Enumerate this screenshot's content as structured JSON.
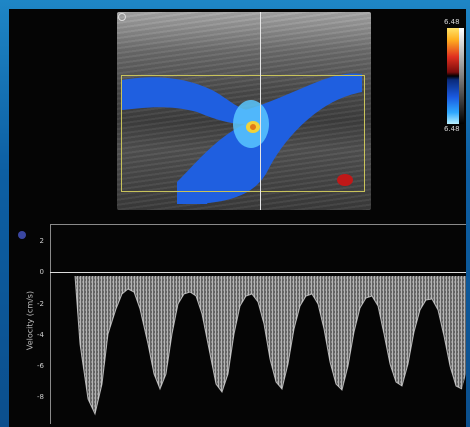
{
  "scale": {
    "top_value": "6.48",
    "bottom_value": "6.48"
  },
  "spectrum": {
    "axis_label": "Velocity (cm/s)",
    "ticks": [
      "2",
      "0",
      "-2",
      "-4",
      "-6",
      "-8"
    ]
  },
  "colors": {
    "vessel_flow": "#1f5fe0",
    "flow_core": "#59c7ff",
    "aliasing": "#f2d23a",
    "reverse_flow": "#c01818",
    "roi_box": "#c8c25a"
  }
}
